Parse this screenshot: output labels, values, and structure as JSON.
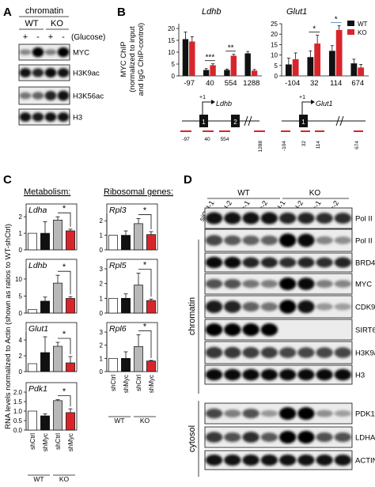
{
  "panel_labels": {
    "a": "A",
    "b": "B",
    "c": "C",
    "d": "D"
  },
  "panel_a": {
    "header": "chromatin",
    "groups": [
      "WT",
      "KO"
    ],
    "glucose_signs": [
      "+",
      "-",
      "+",
      "-"
    ],
    "glucose_label": "(Glucose)",
    "blots": [
      "MYC",
      "H3K9ac",
      "H3K56ac",
      "H3"
    ]
  },
  "panel_b": {
    "ylabel_lines": [
      "MYC ChIP",
      "(normalized to input",
      "and IgG ChIP-control)"
    ],
    "legend": [
      {
        "label": "WT",
        "color": "#111111"
      },
      {
        "label": "KO",
        "color": "#d7262b"
      }
    ],
    "sig_star": "*",
    "ldhb_map": {
      "tss": "+1",
      "gene": "Ldhb",
      "exons": [
        "1",
        "2"
      ],
      "positions": [
        "-97",
        "40",
        "554",
        "1288"
      ]
    },
    "glut1_map": {
      "tss": "+1",
      "gene": "Glut1",
      "exons": [
        "1"
      ],
      "positions": [
        "-104",
        "32",
        "114",
        "674"
      ]
    }
  },
  "panel_c": {
    "metabolism_title": "Metabolism:",
    "ribosomal_title": "Ribosomal genes:",
    "ylabel": "RNA levels normalized to Actin (shown as ratios to WT-shCtrl)",
    "x_conditions": [
      "shCtrl",
      "shMyc",
      "shCtrl",
      "shMyc"
    ],
    "x_groups": [
      "WT",
      "KO"
    ],
    "sig_star": "*",
    "colors": [
      "#ffffff",
      "#111111",
      "#b8b8b8",
      "#d7262b"
    ]
  },
  "panel_d": {
    "groups": [
      "WT",
      "KO"
    ],
    "lanes": [
      "siCtrl-1",
      "siCtrl-2",
      "siMyc-1",
      "siMyc-2",
      "siCtrl-1",
      "siCtrl-2",
      "siMyc-1",
      "siMyc-2"
    ],
    "chromatin_label": "chromatin",
    "cytosol_label": "cytosol",
    "chromatin_blots": [
      "Pol II",
      "Pol II S2P",
      "BRD4",
      "MYC",
      "CDK9",
      "SIRT6",
      "H3K9ac",
      "H3"
    ],
    "cytosol_blots": [
      "PDK1",
      "LDHA",
      "ACTIN"
    ]
  },
  "chart_data": [
    {
      "type": "bar",
      "gene": "Ldhb",
      "categories": [
        "-97",
        "40",
        "554",
        "1288"
      ],
      "series": [
        {
          "name": "WT",
          "values": [
            15.5,
            2.5,
            2.5,
            9.5
          ],
          "errors": [
            3,
            0.6,
            0.4,
            0.8
          ]
        },
        {
          "name": "KO",
          "values": [
            14.5,
            4.5,
            8.5,
            2.2
          ],
          "errors": [
            2,
            0.6,
            0.6,
            0.5
          ]
        }
      ],
      "ylim": [
        0,
        22
      ],
      "yticks": [
        0,
        5,
        10,
        15,
        20
      ],
      "significance": [
        {
          "category": "40",
          "stars": "***"
        },
        {
          "category": "554",
          "stars": "**"
        }
      ]
    },
    {
      "type": "bar",
      "gene": "Glut1",
      "categories": [
        "-104",
        "32",
        "114",
        "674"
      ],
      "series": [
        {
          "name": "WT",
          "values": [
            5.5,
            9,
            12,
            6
          ],
          "errors": [
            3,
            3,
            2.5,
            2
          ]
        },
        {
          "name": "KO",
          "values": [
            8,
            15.5,
            22,
            4
          ],
          "errors": [
            3,
            4,
            2,
            1.5
          ]
        }
      ],
      "ylim": [
        0,
        25
      ],
      "yticks": [
        0,
        5,
        10,
        15,
        20,
        25
      ],
      "significance": [
        {
          "category": "32",
          "stars": "*"
        },
        {
          "category": "114",
          "stars": "*"
        }
      ]
    },
    {
      "type": "bar",
      "gene": "Ldha",
      "values": [
        1,
        1,
        1.8,
        1.15
      ],
      "errors": [
        0,
        0.7,
        0.2,
        0.1
      ],
      "ylim": [
        0,
        2.2
      ],
      "yticks": [
        0,
        1,
        2
      ]
    },
    {
      "type": "bar",
      "gene": "Ldhb",
      "values": [
        1,
        3.5,
        8.8,
        4.3
      ],
      "errors": [
        0,
        1.2,
        2.3,
        0.5
      ],
      "ylim": [
        0,
        13
      ],
      "yticks": [
        0,
        5,
        10
      ]
    },
    {
      "type": "bar",
      "gene": "Glut1",
      "values": [
        1,
        2.4,
        3.2,
        1.1
      ],
      "errors": [
        0,
        2,
        0.5,
        0.8
      ],
      "ylim": [
        0,
        5
      ],
      "yticks": [
        0,
        2,
        4
      ]
    },
    {
      "type": "bar",
      "gene": "Pdk1",
      "values": [
        1,
        0.75,
        1.55,
        0.92
      ],
      "errors": [
        0,
        0.1,
        0.05,
        0.2
      ],
      "ylim": [
        0,
        2
      ],
      "yticks": [
        0,
        0.5,
        1.0,
        1.5,
        2.0
      ]
    },
    {
      "type": "bar",
      "gene": "Rpl3",
      "values": [
        1,
        1,
        1.8,
        1.05
      ],
      "errors": [
        0,
        0.3,
        0.35,
        0.2
      ],
      "ylim": [
        0,
        2.5
      ],
      "yticks": [
        0,
        1,
        2
      ]
    },
    {
      "type": "bar",
      "gene": "Rpl5",
      "values": [
        1,
        1,
        1.9,
        0.85
      ],
      "errors": [
        0,
        0.3,
        0.8,
        0.1
      ],
      "ylim": [
        0,
        3
      ],
      "yticks": [
        0,
        1,
        2,
        3
      ]
    },
    {
      "type": "bar",
      "gene": "Rpl6",
      "values": [
        1,
        1,
        1.9,
        0.8
      ],
      "errors": [
        0,
        0.5,
        0.9,
        0.05
      ],
      "ylim": [
        0,
        3
      ],
      "yticks": [
        0,
        1,
        2,
        3
      ]
    }
  ]
}
